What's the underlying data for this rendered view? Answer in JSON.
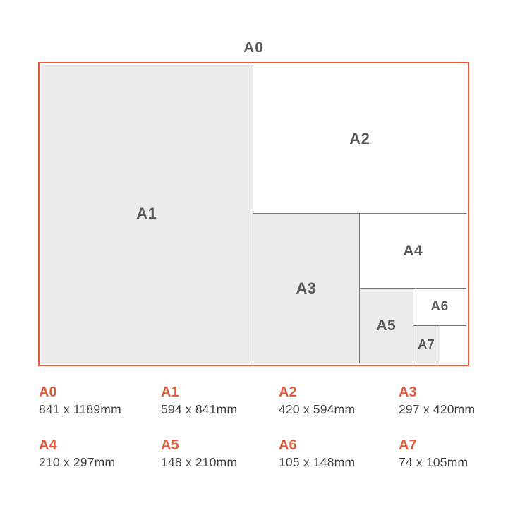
{
  "colors": {
    "accent_orange": "#e25c3c",
    "legend_orange": "#e05b3c",
    "panel_gray": "#ececec",
    "divider_gray": "#76777a",
    "panel_label_gray": "#58595b",
    "dims_text": "#414042",
    "background": "#ffffff"
  },
  "diagram": {
    "title": "A0",
    "panels": [
      {
        "label": "A1"
      },
      {
        "label": "A2"
      },
      {
        "label": "A3"
      },
      {
        "label": "A4"
      },
      {
        "label": "A5"
      },
      {
        "label": "A6"
      },
      {
        "label": "A7"
      }
    ]
  },
  "legend": {
    "items": [
      {
        "size": "A0",
        "dims": "841 x 1189mm"
      },
      {
        "size": "A1",
        "dims": "594 x 841mm"
      },
      {
        "size": "A2",
        "dims": "420 x 594mm"
      },
      {
        "size": "A3",
        "dims": "297 x 420mm"
      },
      {
        "size": "A4",
        "dims": "210 x 297mm"
      },
      {
        "size": "A5",
        "dims": "148 x 210mm"
      },
      {
        "size": "A6",
        "dims": "105 x 148mm"
      },
      {
        "size": "A7",
        "dims": "74 x 105mm"
      }
    ]
  }
}
